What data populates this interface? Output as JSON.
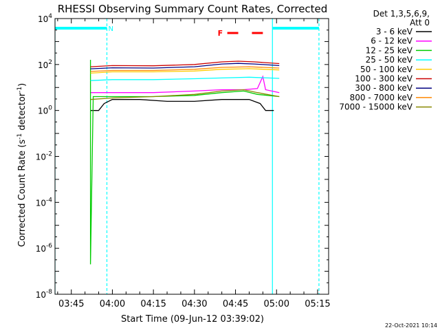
{
  "colors": {
    "axis": "#000000",
    "attenuator": "#00ffff",
    "flare_marker": "#ff0000"
  },
  "chart_data": {
    "type": "line",
    "title": "RHESSI Observing Summary Count Rates, Corrected",
    "xlabel": "Start Time (09-Jun-12 03:39:02)",
    "ylabel": "Corrected Count Rate (s⁻¹ detector⁻¹)",
    "ylabel_main": "Corrected Count Rate (s",
    "ylabel_sup1": "-1",
    "ylabel_mid": " detector",
    "ylabel_sup2": "-1",
    "ylabel_end": ")",
    "yscale": "log",
    "xlim": [
      "03:39:02",
      "05:19:02"
    ],
    "ylim": [
      1e-08,
      10000
    ],
    "x_ticks": [
      "03:45",
      "04:00",
      "04:15",
      "04:30",
      "04:45",
      "05:00",
      "05:15"
    ],
    "y_ticks": [
      {
        "base": "10",
        "exp": "-8",
        "value": 1e-08
      },
      {
        "base": "10",
        "exp": "-6",
        "value": 1e-06
      },
      {
        "base": "10",
        "exp": "-4",
        "value": 0.0001
      },
      {
        "base": "10",
        "exp": "-2",
        "value": 0.01
      },
      {
        "base": "10",
        "exp": "0",
        "value": 1
      },
      {
        "base": "10",
        "exp": "2",
        "value": 100
      },
      {
        "base": "10",
        "exp": "4",
        "value": 10000
      }
    ],
    "legend": {
      "placement": "right",
      "header": [
        "Det 1,3,5,6,9,",
        "Att 0"
      ]
    },
    "series": [
      {
        "name": "3 - 6 keV",
        "color": "#000000",
        "points": [
          [
            "03:52",
            1
          ],
          [
            "03:55",
            1
          ],
          [
            "03:57",
            2
          ],
          [
            "04:00",
            3
          ],
          [
            "04:10",
            3
          ],
          [
            "04:20",
            2.5
          ],
          [
            "04:30",
            2.5
          ],
          [
            "04:40",
            3
          ],
          [
            "04:50",
            3
          ],
          [
            "04:54",
            2
          ],
          [
            "04:56",
            1
          ],
          [
            "04:59",
            1
          ]
        ]
      },
      {
        "name": "6 - 12 keV",
        "color": "#ff00ff",
        "points": [
          [
            "03:52",
            6
          ],
          [
            "03:55",
            6
          ],
          [
            "04:00",
            6
          ],
          [
            "04:15",
            6
          ],
          [
            "04:30",
            7
          ],
          [
            "04:40",
            8
          ],
          [
            "04:48",
            8
          ],
          [
            "04:53",
            9
          ],
          [
            "04:55",
            30
          ],
          [
            "04:56",
            8
          ],
          [
            "05:01",
            6
          ]
        ]
      },
      {
        "name": "12 - 25 keV",
        "color": "#00cc00",
        "points": [
          [
            "03:52",
            160
          ],
          [
            "03:52",
            1
          ],
          [
            "03:52",
            2e-07
          ],
          [
            "03:53",
            4
          ],
          [
            "04:00",
            4
          ],
          [
            "04:15",
            4
          ],
          [
            "04:30",
            4.5
          ],
          [
            "04:40",
            6
          ],
          [
            "04:48",
            7
          ],
          [
            "04:53",
            5
          ],
          [
            "05:01",
            4
          ]
        ]
      },
      {
        "name": "25 - 50 keV",
        "color": "#00ffff",
        "points": [
          [
            "03:52",
            20
          ],
          [
            "04:00",
            22
          ],
          [
            "04:15",
            22
          ],
          [
            "04:30",
            24
          ],
          [
            "04:40",
            26
          ],
          [
            "04:50",
            28
          ],
          [
            "05:01",
            25
          ]
        ]
      },
      {
        "name": "50 - 100 keV",
        "color": "#ffcc00",
        "points": [
          [
            "03:52",
            42
          ],
          [
            "04:00",
            48
          ],
          [
            "04:15",
            48
          ],
          [
            "04:30",
            52
          ],
          [
            "04:40",
            62
          ],
          [
            "04:50",
            66
          ],
          [
            "05:01",
            58
          ]
        ]
      },
      {
        "name": "100 - 300 keV",
        "color": "#cc0000",
        "points": [
          [
            "03:52",
            80
          ],
          [
            "04:00",
            90
          ],
          [
            "04:15",
            88
          ],
          [
            "04:30",
            100
          ],
          [
            "04:40",
            130
          ],
          [
            "04:46",
            140
          ],
          [
            "04:52",
            130
          ],
          [
            "05:01",
            110
          ]
        ]
      },
      {
        "name": "300 - 800 keV",
        "color": "#000080",
        "points": [
          [
            "03:52",
            65
          ],
          [
            "04:00",
            72
          ],
          [
            "04:15",
            70
          ],
          [
            "04:30",
            80
          ],
          [
            "04:40",
            105
          ],
          [
            "04:46",
            112
          ],
          [
            "04:52",
            105
          ],
          [
            "05:01",
            90
          ]
        ]
      },
      {
        "name": "800 - 7000 keV",
        "color": "#ff8800",
        "points": [
          [
            "03:52",
            50
          ],
          [
            "04:00",
            55
          ],
          [
            "04:15",
            55
          ],
          [
            "04:30",
            62
          ],
          [
            "04:40",
            75
          ],
          [
            "04:50",
            80
          ],
          [
            "05:01",
            70
          ]
        ]
      },
      {
        "name": "7000 - 15000 keV",
        "color": "#888800",
        "points": [
          [
            "03:52",
            3
          ],
          [
            "04:00",
            3.5
          ],
          [
            "04:15",
            4
          ],
          [
            "04:30",
            5
          ],
          [
            "04:40",
            7
          ],
          [
            "04:48",
            8
          ],
          [
            "04:53",
            6
          ],
          [
            "05:01",
            4
          ]
        ]
      }
    ],
    "attenuator_intervals": [
      {
        "start": "03:39:02",
        "end": "03:58:00",
        "label": "N"
      },
      {
        "start": "04:58:30",
        "end": "05:15:30",
        "label": ""
      }
    ],
    "flare_marker": {
      "label": "F",
      "segments": [
        [
          "04:42:00",
          "04:46:00"
        ],
        [
          "04:51:00",
          "04:55:00"
        ]
      ]
    },
    "footer_date": "22-Oct-2021 10:14"
  }
}
